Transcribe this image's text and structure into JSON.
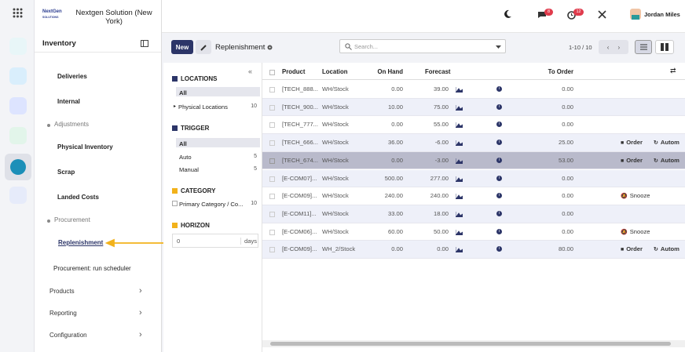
{
  "header": {
    "logo": "NextGen",
    "logo_sub": "SOLUTIONS",
    "company": "Nextgen Solution (New York)",
    "messages_badge": "8",
    "activity_badge": "12",
    "user": "Jordan Miles"
  },
  "sidebar": {
    "title": "Inventory",
    "items": [
      {
        "label": "Deliveries",
        "kind": "link"
      },
      {
        "label": "Internal",
        "kind": "link"
      },
      {
        "label": "Adjustments",
        "kind": "section"
      },
      {
        "label": "Physical Inventory",
        "kind": "link"
      },
      {
        "label": "Scrap",
        "kind": "link"
      },
      {
        "label": "Landed Costs",
        "kind": "link"
      },
      {
        "label": "Procurement",
        "kind": "section"
      },
      {
        "label": "Replenishment",
        "kind": "active"
      },
      {
        "label": "Procurement: run scheduler",
        "kind": "link"
      },
      {
        "label": "Products",
        "kind": "menu"
      },
      {
        "label": "Reporting",
        "kind": "menu"
      },
      {
        "label": "Configuration",
        "kind": "menu"
      }
    ]
  },
  "control": {
    "new": "New",
    "breadcrumb": "Replenishment",
    "search": "Search...",
    "pager": "1-10 / 10"
  },
  "filters": {
    "locations": {
      "title": "LOCATIONS",
      "items": [
        {
          "label": "All"
        },
        {
          "label": "Physical Locations",
          "count": "10"
        }
      ]
    },
    "trigger": {
      "title": "TRIGGER",
      "items": [
        {
          "label": "All"
        },
        {
          "label": "Auto",
          "count": "5"
        },
        {
          "label": "Manual",
          "count": "5"
        }
      ]
    },
    "category": {
      "title": "CATEGORY",
      "items": [
        {
          "label": "Primary Category / Co...",
          "count": "10"
        }
      ]
    },
    "horizon": {
      "title": "HORIZON",
      "value": "0",
      "unit": "days"
    }
  },
  "table": {
    "columns": [
      "Product",
      "Location",
      "On Hand",
      "Forecast",
      "To Order"
    ],
    "rows": [
      {
        "cells": [
          "[TECH_888...",
          "WH/Stock",
          "0.00",
          "39.00",
          "0.00"
        ]
      },
      {
        "cells": [
          "[TECH_900...",
          "WH/Stock",
          "10.00",
          "75.00",
          "0.00"
        ]
      },
      {
        "cells": [
          "[TECH_777...",
          "WH/Stock",
          "0.00",
          "55.00",
          "0.00"
        ]
      },
      {
        "cells": [
          "[TECH_666...",
          "WH/Stock",
          "36.00",
          "-6.00",
          "25.00"
        ],
        "actions": [
          "Order",
          "Autom"
        ]
      },
      {
        "cells": [
          "[TECH_674...",
          "WH/Stock",
          "0.00",
          "-3.00",
          "53.00"
        ],
        "actions": [
          "Order",
          "Autom"
        ],
        "selected": true
      },
      {
        "cells": [
          "[E-COM07]...",
          "WH/Stock",
          "500.00",
          "277.00",
          "0.00"
        ]
      },
      {
        "cells": [
          "[E-COM09]...",
          "WH/Stock",
          "240.00",
          "240.00",
          "0.00"
        ],
        "actions": [
          "Snooze"
        ]
      },
      {
        "cells": [
          "[E-COM11]...",
          "WH/Stock",
          "33.00",
          "18.00",
          "0.00"
        ]
      },
      {
        "cells": [
          "[E-COM06]...",
          "WH/Stock",
          "60.00",
          "50.00",
          "0.00"
        ],
        "actions": [
          "Snooze"
        ]
      },
      {
        "cells": [
          "[E-COM09]...",
          "WH_2/Stock",
          "0.00",
          "0.00",
          "80.00"
        ],
        "actions": [
          "Order",
          "Autom"
        ]
      }
    ]
  }
}
